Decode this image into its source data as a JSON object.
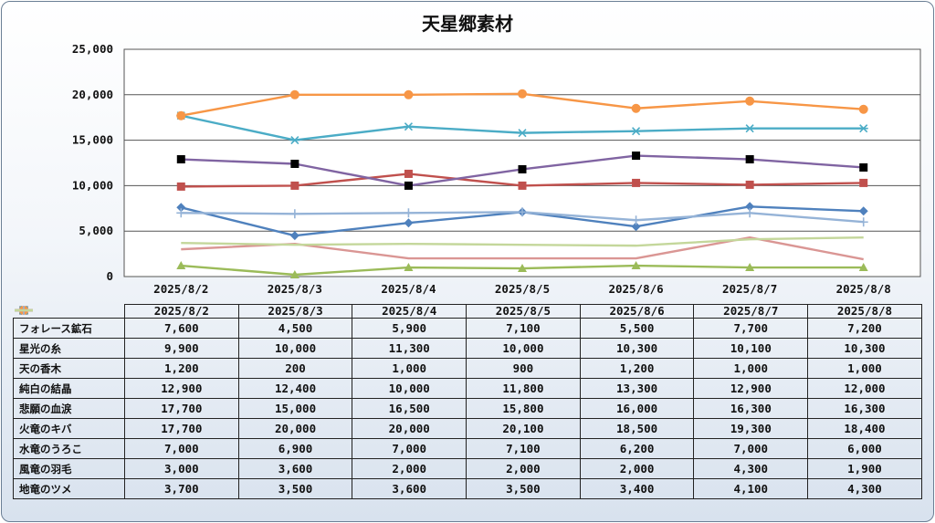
{
  "chart_data": {
    "type": "line",
    "title": "天星郷素材",
    "ylim": [
      0,
      25000
    ],
    "yticks": [
      "0",
      "5,000",
      "10,000",
      "15,000",
      "20,000",
      "25,000"
    ],
    "grid": true,
    "legend": "data-table",
    "categories": [
      "2025/8/2",
      "2025/8/3",
      "2025/8/4",
      "2025/8/5",
      "2025/8/6",
      "2025/8/7",
      "2025/8/8"
    ],
    "series": [
      {
        "name": "フォレース鉱石",
        "color": "#4f81bd",
        "marker": "diamond",
        "values": [
          7600,
          4500,
          5900,
          7100,
          5500,
          7700,
          7200
        ],
        "labels": [
          "7,600",
          "4,500",
          "5,900",
          "7,100",
          "5,500",
          "7,700",
          "7,200"
        ]
      },
      {
        "name": "星光の糸",
        "color": "#c0504d",
        "marker": "square",
        "values": [
          9900,
          10000,
          11300,
          10000,
          10300,
          10100,
          10300
        ],
        "labels": [
          "9,900",
          "10,000",
          "11,300",
          "10,000",
          "10,300",
          "10,100",
          "10,300"
        ]
      },
      {
        "name": "天の香木",
        "color": "#9bbb59",
        "marker": "triangle",
        "values": [
          1200,
          200,
          1000,
          900,
          1200,
          1000,
          1000
        ],
        "labels": [
          "1,200",
          "200",
          "1,000",
          "900",
          "1,200",
          "1,000",
          "1,000"
        ]
      },
      {
        "name": "純白の結晶",
        "color": "#8064a2",
        "marker": "x-black-square",
        "values": [
          12900,
          12400,
          10000,
          11800,
          13300,
          12900,
          12000
        ],
        "labels": [
          "12,900",
          "12,400",
          "10,000",
          "11,800",
          "13,300",
          "12,900",
          "12,000"
        ]
      },
      {
        "name": "悲願の血涙",
        "color": "#4bacc6",
        "marker": "asterisk",
        "values": [
          17700,
          15000,
          16500,
          15800,
          16000,
          16300,
          16300
        ],
        "labels": [
          "17,700",
          "15,000",
          "16,500",
          "15,800",
          "16,000",
          "16,300",
          "16,300"
        ]
      },
      {
        "name": "火竜のキバ",
        "color": "#f79646",
        "marker": "circle",
        "values": [
          17700,
          20000,
          20000,
          20100,
          18500,
          19300,
          18400
        ],
        "labels": [
          "17,700",
          "20,000",
          "20,000",
          "20,100",
          "18,500",
          "19,300",
          "18,400"
        ]
      },
      {
        "name": "水竜のうろこ",
        "color": "#95b3d7",
        "marker": "plus",
        "values": [
          7000,
          6900,
          7000,
          7100,
          6200,
          7000,
          6000
        ],
        "labels": [
          "7,000",
          "6,900",
          "7,000",
          "7,100",
          "6,200",
          "7,000",
          "6,000"
        ]
      },
      {
        "name": "風竜の羽毛",
        "color": "#da9694",
        "marker": "none",
        "values": [
          3000,
          3600,
          2000,
          2000,
          2000,
          4300,
          1900
        ],
        "labels": [
          "3,000",
          "3,600",
          "2,000",
          "2,000",
          "2,000",
          "4,300",
          "1,900"
        ]
      },
      {
        "name": "地竜のツメ",
        "color": "#c4d79b",
        "marker": "none",
        "values": [
          3700,
          3500,
          3600,
          3500,
          3400,
          4100,
          4300
        ],
        "labels": [
          "3,700",
          "3,500",
          "3,600",
          "3,500",
          "3,400",
          "4,100",
          "4,300"
        ]
      }
    ]
  }
}
